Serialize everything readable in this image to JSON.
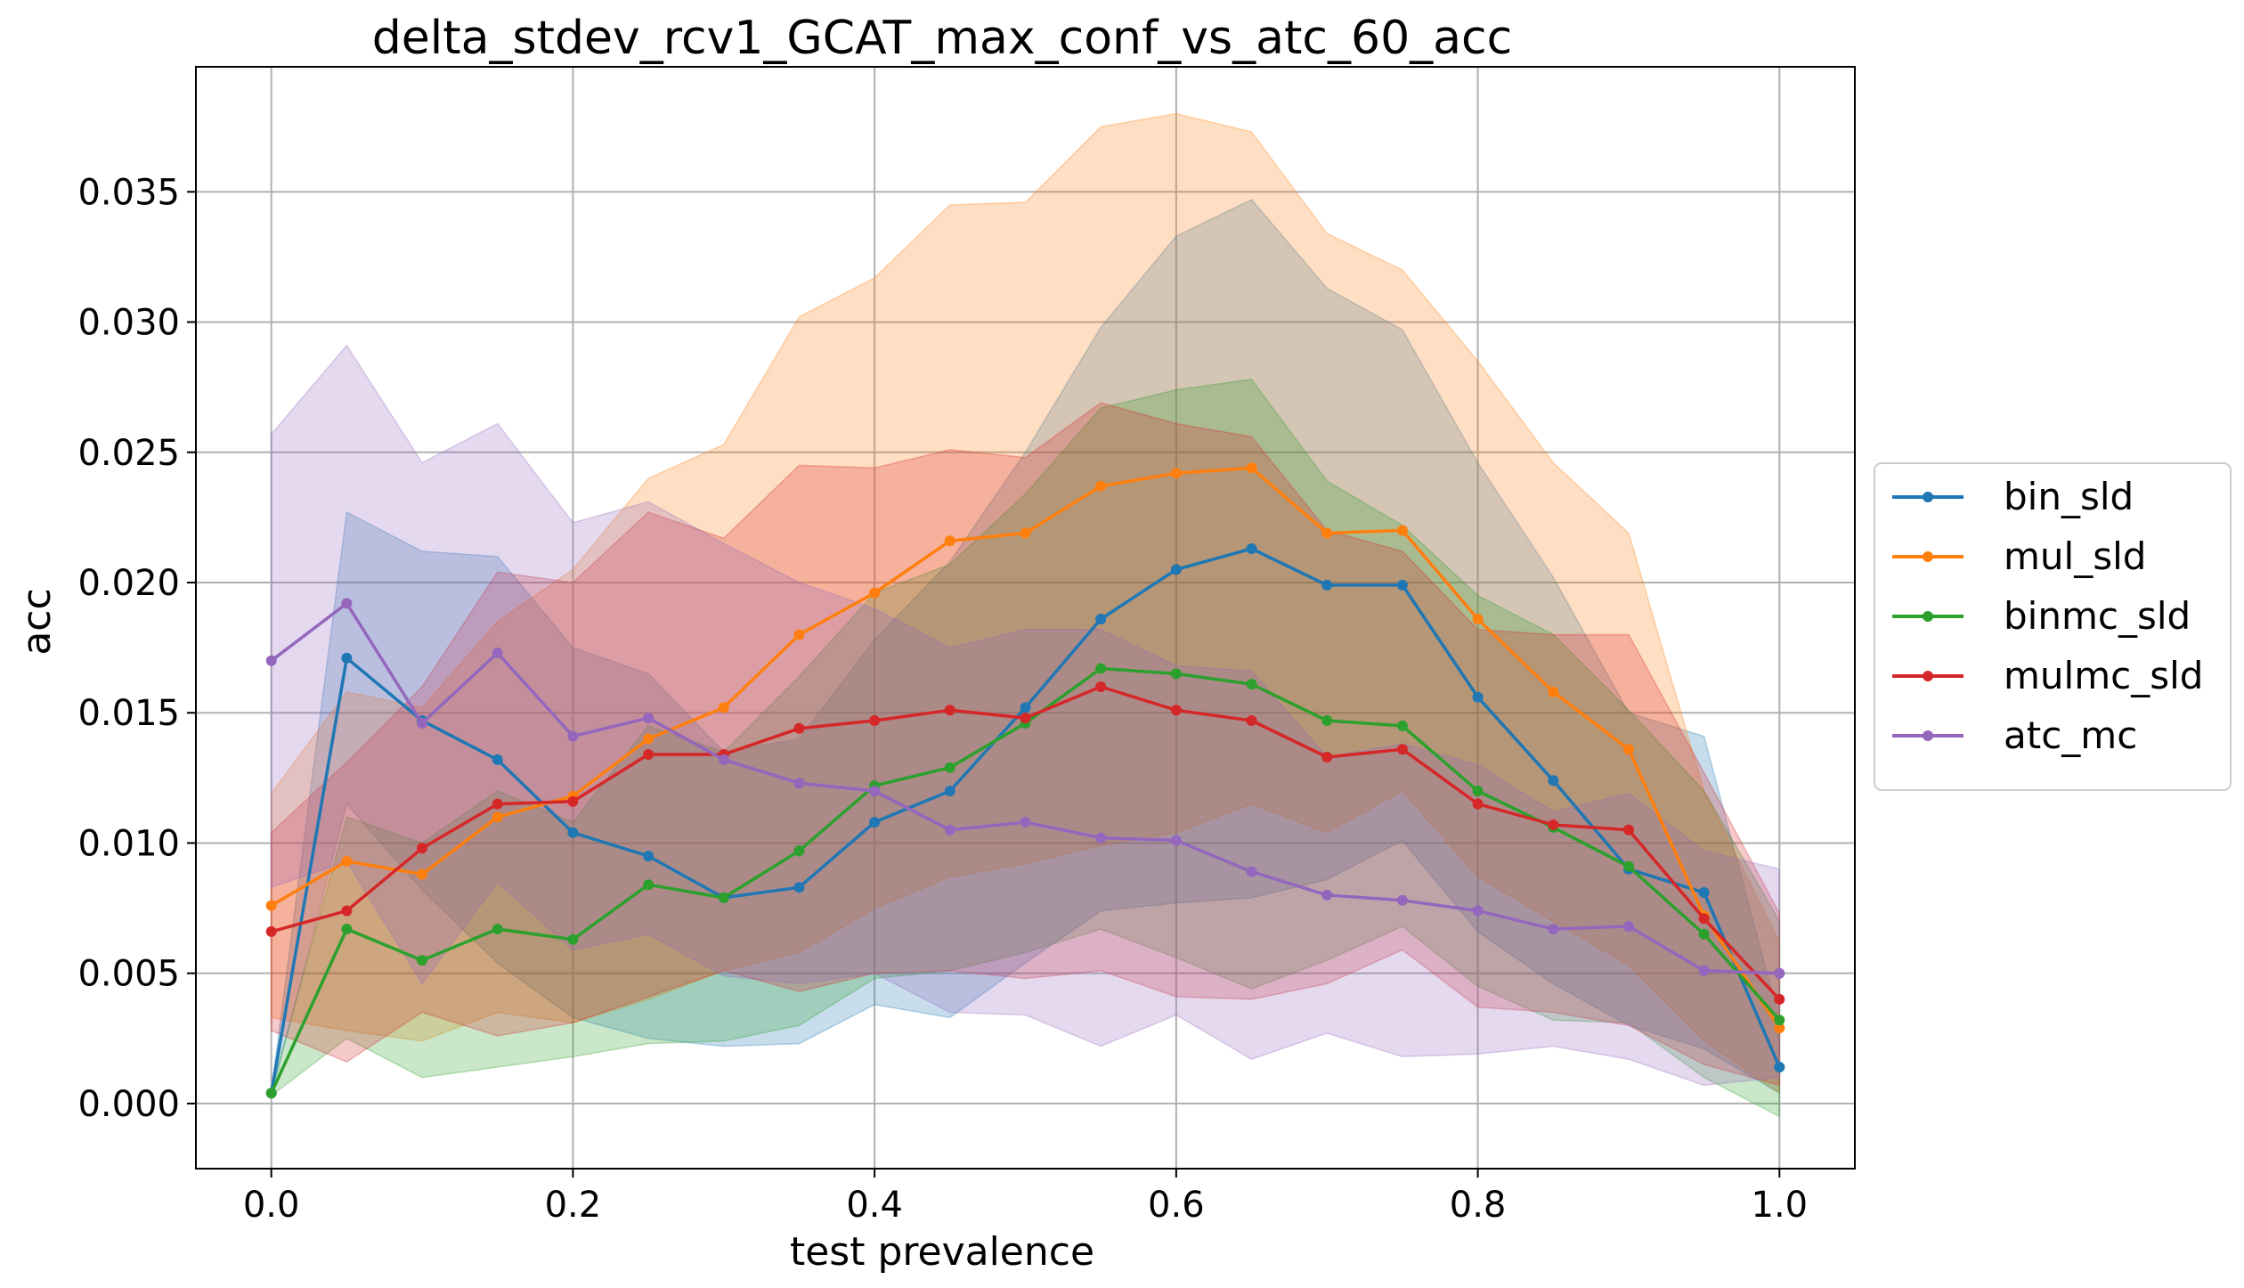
{
  "chart_data": {
    "type": "line",
    "title": "delta_stdev_rcv1_GCAT_max_conf_vs_atc_60_acc",
    "xlabel": "test prevalence",
    "ylabel": "acc",
    "xlim": [
      -0.05,
      1.05
    ],
    "ylim": [
      -0.0025,
      0.0398
    ],
    "xticks": [
      0.0,
      0.2,
      0.4,
      0.6,
      0.8,
      1.0
    ],
    "xtick_labels": [
      "0.0",
      "0.2",
      "0.4",
      "0.6",
      "0.8",
      "1.0"
    ],
    "yticks": [
      0.0,
      0.005,
      0.01,
      0.015,
      0.02,
      0.025,
      0.03,
      0.035
    ],
    "ytick_labels": [
      "0.000",
      "0.005",
      "0.010",
      "0.015",
      "0.020",
      "0.025",
      "0.030",
      "0.035"
    ],
    "grid": true,
    "legend_position": "outside-right",
    "x": [
      0.0,
      0.05,
      0.1,
      0.15,
      0.2,
      0.25,
      0.3,
      0.35,
      0.4,
      0.45,
      0.5,
      0.55,
      0.6,
      0.65,
      0.7,
      0.75,
      0.8,
      0.85,
      0.9,
      0.95,
      1.0
    ],
    "series": [
      {
        "name": "bin_sld",
        "color": "#1f77b4",
        "values": [
          0.0004,
          0.0171,
          0.0147,
          0.0132,
          0.0104,
          0.0095,
          0.0079,
          0.0083,
          0.0108,
          0.012,
          0.0152,
          0.0186,
          0.0205,
          0.0213,
          0.0199,
          0.0199,
          0.0156,
          0.0124,
          0.009,
          0.0081,
          0.0014
        ],
        "upper": [
          0.0005,
          0.0227,
          0.0212,
          0.021,
          0.0175,
          0.0165,
          0.0135,
          0.014,
          0.0178,
          0.0208,
          0.025,
          0.0298,
          0.0333,
          0.0347,
          0.0313,
          0.0297,
          0.0246,
          0.0202,
          0.015,
          0.0141,
          0.0032
        ],
        "lower": [
          0.0003,
          0.0115,
          0.0082,
          0.0054,
          0.0033,
          0.0025,
          0.0022,
          0.0023,
          0.0038,
          0.0033,
          0.0054,
          0.0074,
          0.0077,
          0.0079,
          0.0086,
          0.0101,
          0.0066,
          0.0046,
          0.003,
          0.0021,
          0.0004
        ]
      },
      {
        "name": "mul_sld",
        "color": "#ff7f0e",
        "values": [
          0.0076,
          0.0093,
          0.0088,
          0.011,
          0.0118,
          0.014,
          0.0152,
          0.018,
          0.0196,
          0.0216,
          0.0219,
          0.0237,
          0.0242,
          0.0244,
          0.0219,
          0.022,
          0.0186,
          0.0158,
          0.0136,
          0.0072,
          0.0029
        ],
        "upper": [
          0.0119,
          0.0158,
          0.0152,
          0.0185,
          0.0205,
          0.024,
          0.0253,
          0.0302,
          0.0317,
          0.0345,
          0.0346,
          0.0375,
          0.038,
          0.0373,
          0.0334,
          0.032,
          0.0285,
          0.0246,
          0.0219,
          0.012,
          0.0062
        ],
        "lower": [
          0.0033,
          0.0028,
          0.0024,
          0.0035,
          0.0031,
          0.004,
          0.0051,
          0.0058,
          0.0075,
          0.0087,
          0.0092,
          0.0099,
          0.0104,
          0.0115,
          0.0104,
          0.012,
          0.0087,
          0.007,
          0.0053,
          0.0024,
          0.0004
        ]
      },
      {
        "name": "binmc_sld",
        "color": "#2ca02c",
        "values": [
          0.0004,
          0.0067,
          0.0055,
          0.0067,
          0.0063,
          0.0084,
          0.0079,
          0.0097,
          0.0122,
          0.0129,
          0.0146,
          0.0167,
          0.0165,
          0.0161,
          0.0147,
          0.0145,
          0.012,
          0.0106,
          0.0091,
          0.0065,
          0.0032
        ],
        "upper": [
          0.0005,
          0.011,
          0.01,
          0.012,
          0.0108,
          0.0145,
          0.0135,
          0.0164,
          0.0196,
          0.0207,
          0.0234,
          0.0267,
          0.0274,
          0.0278,
          0.0239,
          0.0222,
          0.0195,
          0.018,
          0.0151,
          0.012,
          0.007
        ],
        "lower": [
          0.0003,
          0.0025,
          0.001,
          0.0014,
          0.0018,
          0.0023,
          0.0024,
          0.003,
          0.0048,
          0.0051,
          0.0058,
          0.0067,
          0.0056,
          0.0044,
          0.0055,
          0.0068,
          0.0045,
          0.0032,
          0.0031,
          0.001,
          -0.0005
        ]
      },
      {
        "name": "mulmc_sld",
        "color": "#d62728",
        "values": [
          0.0066,
          0.0074,
          0.0098,
          0.0115,
          0.0116,
          0.0134,
          0.0134,
          0.0144,
          0.0147,
          0.0151,
          0.0148,
          0.016,
          0.0151,
          0.0147,
          0.0133,
          0.0136,
          0.0115,
          0.0107,
          0.0105,
          0.0071,
          0.004
        ],
        "upper": [
          0.0104,
          0.0131,
          0.016,
          0.0204,
          0.02,
          0.0227,
          0.0217,
          0.0245,
          0.0244,
          0.0251,
          0.0248,
          0.0269,
          0.0261,
          0.0256,
          0.022,
          0.0212,
          0.0182,
          0.018,
          0.018,
          0.0127,
          0.0073
        ],
        "lower": [
          0.0028,
          0.0016,
          0.0035,
          0.0026,
          0.0031,
          0.0041,
          0.0051,
          0.0043,
          0.005,
          0.0051,
          0.0048,
          0.0051,
          0.0041,
          0.004,
          0.0046,
          0.0059,
          0.0037,
          0.0035,
          0.003,
          0.0015,
          0.0007
        ]
      },
      {
        "name": "atc_mc",
        "color": "#9467bd",
        "values": [
          0.017,
          0.0192,
          0.0146,
          0.0173,
          0.0141,
          0.0148,
          0.0132,
          0.0123,
          0.012,
          0.0105,
          0.0108,
          0.0102,
          0.0101,
          0.0089,
          0.008,
          0.0078,
          0.0074,
          0.0067,
          0.0068,
          0.0051,
          0.005
        ],
        "upper": [
          0.0257,
          0.0291,
          0.0246,
          0.0261,
          0.0223,
          0.0231,
          0.0215,
          0.02,
          0.019,
          0.0175,
          0.0182,
          0.0182,
          0.0168,
          0.0166,
          0.0133,
          0.0138,
          0.013,
          0.0112,
          0.0119,
          0.0097,
          0.009
        ],
        "lower": [
          0.0083,
          0.0093,
          0.0046,
          0.0085,
          0.0059,
          0.0065,
          0.0049,
          0.0046,
          0.005,
          0.0035,
          0.0034,
          0.0022,
          0.0034,
          0.0017,
          0.0027,
          0.0018,
          0.0019,
          0.0022,
          0.0017,
          0.0007,
          0.001
        ]
      }
    ]
  }
}
